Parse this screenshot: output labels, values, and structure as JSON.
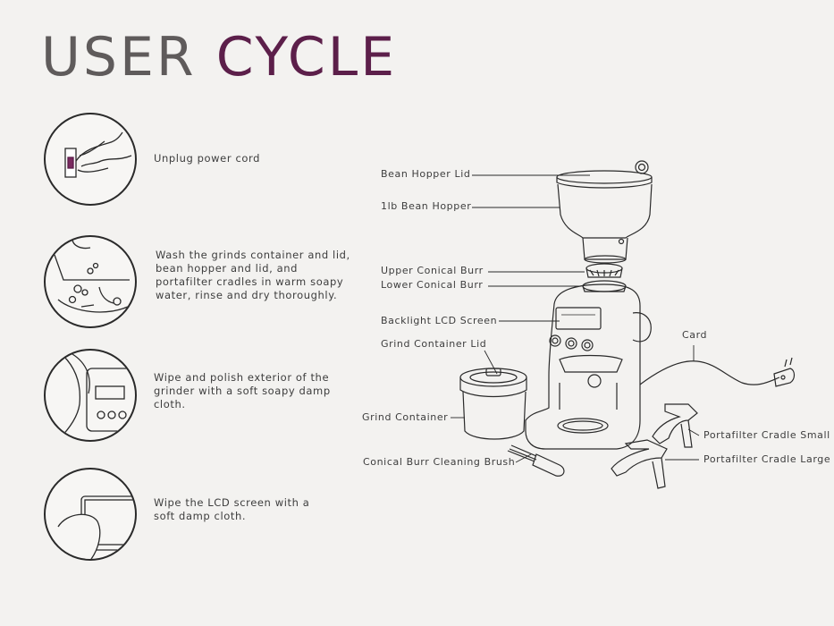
{
  "title": {
    "word1": "USER",
    "word2": "CYCLE"
  },
  "colors": {
    "title_gray": "#5f5b5b",
    "title_accent": "#5c1f4a",
    "background": "#f3f2f0",
    "line": "#2a2a2a"
  },
  "steps": [
    {
      "icon": "unplug-icon",
      "text": "Unplug power cord"
    },
    {
      "icon": "washing-icon",
      "text": "Wash the grinds container and lid,\nbean hopper and lid, and\nportafilter cradles in warm soapy\nwater, rinse and dry thoroughly."
    },
    {
      "icon": "polish-exterior-icon",
      "text": "Wipe and polish exterior of the\ngrinder with a soft soapy damp\ncloth."
    },
    {
      "icon": "wipe-screen-icon",
      "text": "Wipe the LCD screen with a\nsoft damp cloth."
    }
  ],
  "parts": {
    "bean_hopper_lid": "Bean Hopper Lid",
    "bean_hopper": "1lb Bean Hopper",
    "upper_burr": "Upper Conical Burr",
    "lower_burr": "Lower Conical Burr",
    "lcd_screen": "Backlight LCD Screen",
    "grind_container_lid": "Grind Container Lid",
    "grind_container": "Grind Container",
    "cleaning_brush": "Conical Burr Cleaning Brush",
    "card": "Card",
    "cradle_small": "Portafilter Cradle Small",
    "cradle_large": "Portafilter Cradle Large"
  }
}
